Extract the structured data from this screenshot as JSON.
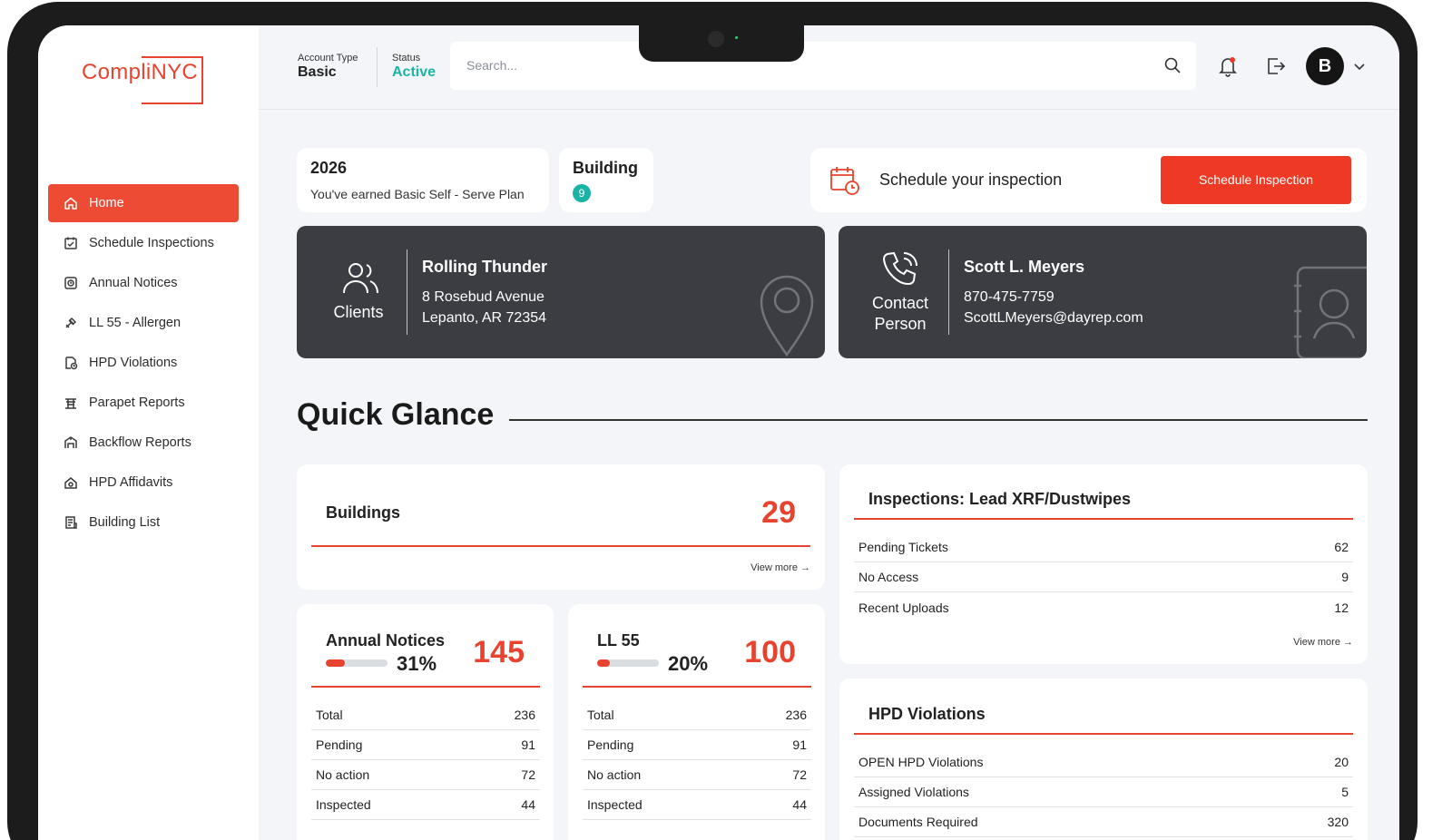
{
  "app": {
    "logo": "CompliNYC"
  },
  "sidebar": {
    "items": [
      {
        "label": "Home",
        "icon": "home-icon",
        "active": true
      },
      {
        "label": "Schedule Inspections",
        "icon": "calendar-check-icon"
      },
      {
        "label": "Annual Notices",
        "icon": "notice-icon"
      },
      {
        "label": "LL 55 - Allergen",
        "icon": "spray-icon"
      },
      {
        "label": "HPD Violations",
        "icon": "document-clock-icon"
      },
      {
        "label": "Parapet Reports",
        "icon": "parapet-icon"
      },
      {
        "label": "Backflow Reports",
        "icon": "backflow-icon"
      },
      {
        "label": "HPD Affidavits",
        "icon": "house-icon"
      },
      {
        "label": "Building List",
        "icon": "building-list-icon"
      }
    ]
  },
  "header": {
    "account_type_label": "Account Type",
    "account_type_value": "Basic",
    "status_label": "Status",
    "status_value": "Active",
    "search_placeholder": "Search...",
    "avatar_initial": "B",
    "colors": {
      "status": "#1bb3a6",
      "accent": "#ee3a24"
    }
  },
  "plan": {
    "year": "2026",
    "subtitle": "You've earned Basic Self - Serve Plan"
  },
  "building": {
    "label": "Building",
    "count": "9"
  },
  "schedule": {
    "text": "Schedule your inspection",
    "button": "Schedule Inspection"
  },
  "client": {
    "label": "Clients",
    "name": "Rolling Thunder",
    "address1": "8 Rosebud Avenue",
    "address2": "Lepanto, AR 72354"
  },
  "contact": {
    "label_line1": "Contact",
    "label_line2": "Person",
    "name": "Scott L. Meyers",
    "phone": "870-475-7759",
    "email": "ScottLMeyers@dayrep.com"
  },
  "quick_glance": {
    "title": "Quick Glance",
    "view_more": "View more",
    "buildings": {
      "label": "Buildings",
      "value": "29"
    },
    "annual_notices": {
      "label": "Annual Notices",
      "percent": "31%",
      "progress": 0.31,
      "value": "145",
      "rows": [
        {
          "label": "Total",
          "value": "236"
        },
        {
          "label": "Pending",
          "value": "91"
        },
        {
          "label": "No action",
          "value": "72"
        },
        {
          "label": "Inspected",
          "value": "44"
        }
      ]
    },
    "ll55": {
      "label": "LL 55",
      "percent": "20%",
      "progress": 0.2,
      "value": "100",
      "rows": [
        {
          "label": "Total",
          "value": "236"
        },
        {
          "label": "Pending",
          "value": "91"
        },
        {
          "label": "No action",
          "value": "72"
        },
        {
          "label": "Inspected",
          "value": "44"
        }
      ]
    },
    "inspections": {
      "title": "Inspections: Lead XRF/Dustwipes",
      "rows": [
        {
          "label": "Pending Tickets",
          "value": "62"
        },
        {
          "label": "No Access",
          "value": "9"
        },
        {
          "label": "Recent Uploads",
          "value": "12"
        }
      ]
    },
    "hpd": {
      "title": "HPD Violations",
      "rows": [
        {
          "label": "OPEN HPD Violations",
          "value": "20"
        },
        {
          "label": "Assigned Violations",
          "value": "5"
        },
        {
          "label": "Documents Required",
          "value": "320"
        }
      ]
    }
  }
}
